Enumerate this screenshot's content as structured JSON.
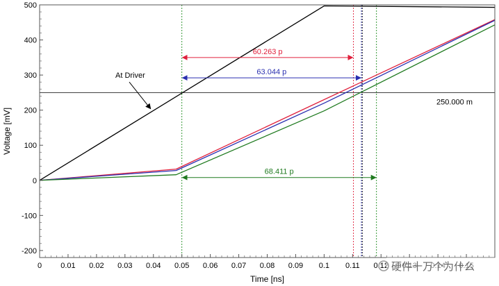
{
  "chart_data": {
    "type": "line",
    "xlabel": "Time [ns]",
    "ylabel": "Voltage [mV]",
    "xlim": [
      0,
      0.16
    ],
    "ylim": [
      -220,
      500
    ],
    "xticks": [
      "0",
      "0.01",
      "0.02",
      "0.03",
      "0.04",
      "0.05",
      "0.06",
      "0.07",
      "0.08",
      "0.09",
      "0.1",
      "0.11",
      "0.12",
      "0.13",
      "0.14",
      "0.15"
    ],
    "yticks": [
      "-200",
      "-100",
      "0",
      "100",
      "200",
      "300",
      "400",
      "500"
    ],
    "grid": false,
    "series": [
      {
        "color": "#000000",
        "x": [
          0,
          0.1,
          0.16
        ],
        "y": [
          0,
          497,
          493
        ]
      },
      {
        "color": "#e0203c",
        "x": [
          0,
          0.048,
          0.1,
          0.16
        ],
        "y": [
          0,
          32,
          230,
          458
        ]
      },
      {
        "color": "#2a2fb0",
        "x": [
          0,
          0.048,
          0.1,
          0.16
        ],
        "y": [
          0,
          28,
          220,
          456
        ]
      },
      {
        "color": "#1f7a1f",
        "x": [
          0,
          0.048,
          0.1,
          0.16
        ],
        "y": [
          0,
          16,
          198,
          443
        ]
      }
    ],
    "threshold": {
      "y": 250,
      "label": "250.000 m",
      "color": "#000000"
    },
    "annotations": [
      {
        "text": "At Driver",
        "x": 0.032,
        "y": 280,
        "arrow_to": {
          "x": 0.039,
          "y": 204
        }
      }
    ],
    "markers": [
      {
        "x": 0.05,
        "color": "#1f8c1f"
      },
      {
        "x": 0.1103,
        "color": "#e0203c"
      },
      {
        "x": 0.1131,
        "color": "#2a2fb0"
      },
      {
        "x": 0.1134,
        "color": "#000000"
      },
      {
        "x": 0.1184,
        "color": "#1f8c1f"
      }
    ],
    "intervals": [
      {
        "label": "60.263 p",
        "x1": 0.05,
        "x2": 0.1103,
        "y": 350,
        "color": "#e0203c"
      },
      {
        "label": "63.044 p",
        "x1": 0.05,
        "x2": 0.1131,
        "y": 292,
        "color": "#2a2fb0"
      },
      {
        "label": "68.411 p",
        "x1": 0.05,
        "x2": 0.1184,
        "y": 8,
        "color": "#1f7a1f"
      }
    ]
  },
  "watermark": "硬件十万个为什么"
}
